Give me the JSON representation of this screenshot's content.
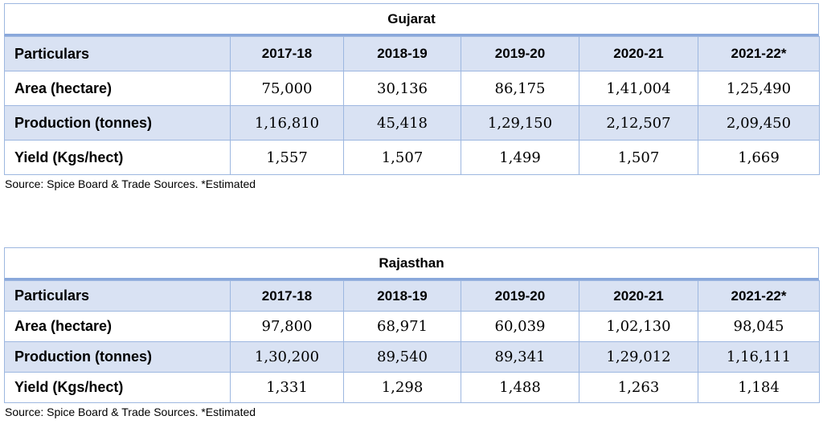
{
  "tables": [
    {
      "title": "Gujarat",
      "headers": [
        "Particulars",
        "2017-18",
        "2018-19",
        "2019-20",
        "2020-21",
        "2021-22*"
      ],
      "rows": [
        [
          "Area (hectare)",
          "75,000",
          "30,136",
          "86,175",
          "1,41,004",
          "1,25,490"
        ],
        [
          "Production (tonnes)",
          "1,16,810",
          "45,418",
          "1,29,150",
          "2,12,507",
          "2,09,450"
        ],
        [
          "Yield (Kgs/hect)",
          "1,557",
          "1,507",
          "1,499",
          "1,507",
          "1,669"
        ]
      ],
      "source": "Source: Spice Board & Trade Sources. *Estimated"
    },
    {
      "title": "Rajasthan",
      "headers": [
        "Particulars",
        "2017-18",
        "2018-19",
        "2019-20",
        "2020-21",
        "2021-22*"
      ],
      "rows": [
        [
          "Area (hectare)",
          "97,800",
          "68,971",
          "60,039",
          "1,02,130",
          "98,045"
        ],
        [
          "Production (tonnes)",
          "1,30,200",
          "89,540",
          "89,341",
          "1,29,012",
          "1,16,111"
        ],
        [
          "Yield (Kgs/hect)",
          "1,331",
          "1,298",
          "1,488",
          "1,263",
          "1,184"
        ]
      ],
      "source": "Source: Spice Board & Trade Sources. *Estimated"
    }
  ]
}
